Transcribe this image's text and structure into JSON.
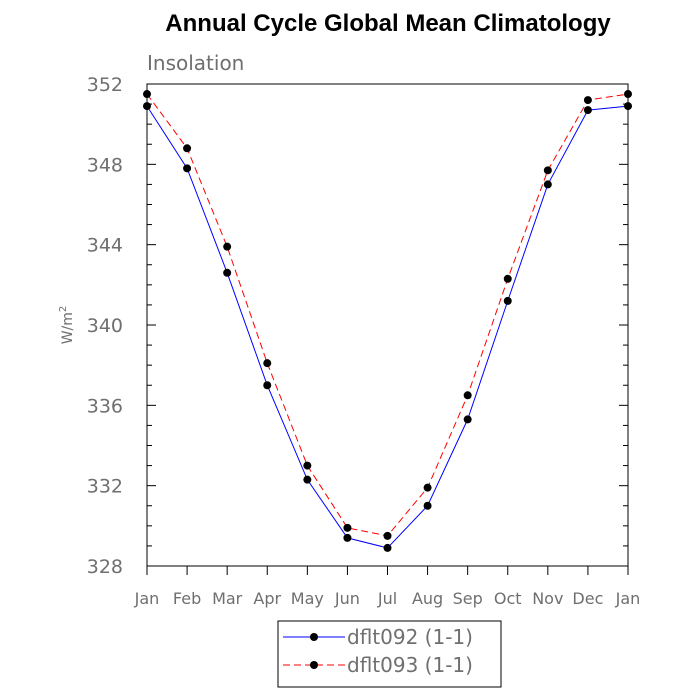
{
  "chart_data": {
    "type": "line",
    "title": "Annual Cycle Global Mean Climatology",
    "subtitle": "Insolation",
    "xlabel": "",
    "ylabel": "W/m",
    "ylabel_superscript": "2",
    "categories": [
      "Jan",
      "Feb",
      "Mar",
      "Apr",
      "May",
      "Jun",
      "Jul",
      "Aug",
      "Sep",
      "Oct",
      "Nov",
      "Dec",
      "Jan"
    ],
    "ylim": [
      328,
      352
    ],
    "yticks": [
      "328",
      "332",
      "336",
      "340",
      "344",
      "348",
      "352"
    ],
    "grid": false,
    "legend_position": "bottom",
    "series": [
      {
        "name": "dflt092 (1-1)",
        "color": "#0000ff",
        "line_style": "solid",
        "marker": "circle",
        "values": [
          350.9,
          347.8,
          342.6,
          337.0,
          332.3,
          329.4,
          328.9,
          331.0,
          335.3,
          341.2,
          347.0,
          350.7,
          350.9
        ]
      },
      {
        "name": "dflt093 (1-1)",
        "color": "#ff0000",
        "line_style": "dashed",
        "marker": "circle",
        "values": [
          351.5,
          348.8,
          343.9,
          338.1,
          333.0,
          329.9,
          329.5,
          331.9,
          336.5,
          342.3,
          347.7,
          351.2,
          351.5
        ]
      }
    ]
  }
}
